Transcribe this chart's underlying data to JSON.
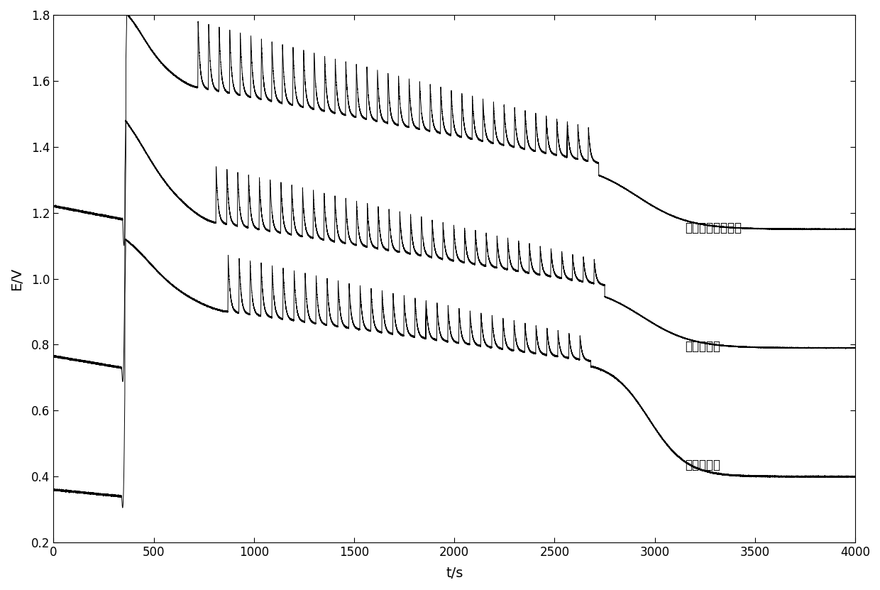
{
  "title": "",
  "xlabel": "t/s",
  "ylabel": "E/V",
  "xlim": [
    0,
    4000
  ],
  "ylim": [
    0.2,
    1.8
  ],
  "xticks": [
    0,
    500,
    1000,
    1500,
    2000,
    2500,
    3000,
    3500,
    4000
  ],
  "yticks": [
    0.2,
    0.4,
    0.6,
    0.8,
    1.0,
    1.2,
    1.4,
    1.6,
    1.8
  ],
  "labels": {
    "curve1": "未知产黑枸杞样本",
    "curve2": "青海黑枸杞",
    "curve3": "新疏黑枸杞"
  },
  "label_positions": {
    "curve1": [
      3150,
      1.155
    ],
    "curve2": [
      3150,
      0.795
    ],
    "curve3": [
      3150,
      0.435
    ]
  },
  "background_color": "#ffffff",
  "line_color": "#000000",
  "line_width": 0.7,
  "curves": {
    "curve1": {
      "base": 1.22,
      "baseline_end": 1.18,
      "peak": 1.775,
      "t_rise": 345,
      "t_osc_start": 720,
      "t_osc_end": 2720,
      "n_osc": 38,
      "osc_base_start": 1.58,
      "osc_base_end": 1.35,
      "amp_start": 0.2,
      "amp_end": 0.1,
      "final": 1.15,
      "t_end": 4000
    },
    "curve2": {
      "base": 0.765,
      "baseline_end": 0.73,
      "peak": 1.45,
      "t_rise": 340,
      "t_osc_start": 810,
      "t_osc_end": 2750,
      "n_osc": 36,
      "osc_base_start": 1.17,
      "osc_base_end": 0.98,
      "amp_start": 0.17,
      "amp_end": 0.07,
      "final": 0.79,
      "t_end": 4000
    },
    "curve3": {
      "base": 0.36,
      "baseline_end": 0.34,
      "peak": 1.09,
      "t_rise": 340,
      "t_osc_start": 870,
      "t_osc_end": 2680,
      "n_osc": 33,
      "osc_base_start": 0.9,
      "osc_base_end": 0.75,
      "amp_start": 0.17,
      "amp_end": 0.07,
      "final": 0.4,
      "t_end": 4000
    }
  }
}
